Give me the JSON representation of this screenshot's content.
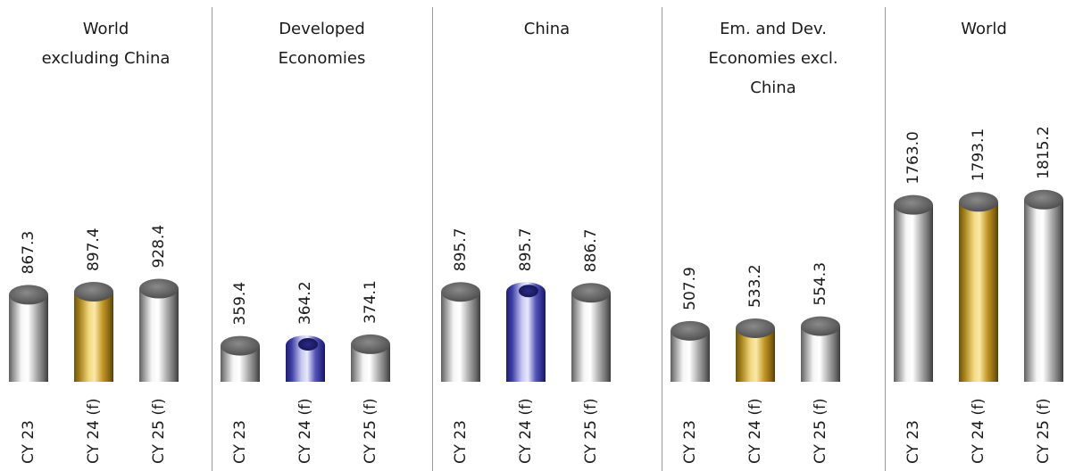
{
  "chart_data": {
    "type": "bar",
    "style": "3d-cylinder",
    "grid": false,
    "legend": "none",
    "ylim": [
      0,
      1900
    ],
    "colors": {
      "default": "#bdbdbd",
      "highlight_gold": "#c9a227",
      "highlight_blue": "#3a3a9c",
      "cap": "#6f6f6f",
      "divider": "#9a9a9a",
      "text": "#1a1a1a"
    },
    "panels": [
      {
        "title": "World excluding China",
        "title_lines": [
          "World",
          "excluding China"
        ],
        "categories": [
          "CY 23",
          "CY 24 (f)",
          "CY 25 (f)"
        ],
        "values": [
          867.3,
          897.4,
          928.4
        ],
        "labels": [
          "867.3",
          "897.4",
          "928.4"
        ],
        "bar_colors": [
          "default",
          "highlight_gold",
          "default"
        ],
        "open_top": [
          false,
          false,
          false
        ]
      },
      {
        "title": "Developed Economies",
        "title_lines": [
          "Developed",
          "Economies"
        ],
        "categories": [
          "CY 23",
          "CY 24 (f)",
          "CY 25 (f)"
        ],
        "values": [
          359.4,
          364.2,
          374.1
        ],
        "labels": [
          "359.4",
          "364.2",
          "374.1"
        ],
        "bar_colors": [
          "default",
          "highlight_blue",
          "default"
        ],
        "open_top": [
          false,
          true,
          false
        ]
      },
      {
        "title": "China",
        "title_lines": [
          "China"
        ],
        "categories": [
          "CY 23",
          "CY 24 (f)",
          "CY 25 (f)"
        ],
        "values": [
          895.7,
          895.7,
          886.7
        ],
        "labels": [
          "895.7",
          "895.7",
          "886.7"
        ],
        "bar_colors": [
          "default",
          "highlight_blue",
          "default"
        ],
        "open_top": [
          false,
          true,
          false
        ]
      },
      {
        "title": "Em. and Dev. Economies excl. China",
        "title_lines": [
          "Em. and Dev.",
          "Economies excl.",
          "China"
        ],
        "categories": [
          "CY 23",
          "CY 24 (f)",
          "CY 25 (f)"
        ],
        "values": [
          507.9,
          533.2,
          554.3
        ],
        "labels": [
          "507.9",
          "533.2",
          "554.3"
        ],
        "bar_colors": [
          "default",
          "highlight_gold",
          "default"
        ],
        "open_top": [
          false,
          false,
          false
        ]
      },
      {
        "title": "World",
        "title_lines": [
          "World"
        ],
        "categories": [
          "CY 23",
          "CY 24 (f)",
          "CY 25 (f)"
        ],
        "values": [
          1763.0,
          1793.1,
          1815.2
        ],
        "labels": [
          "1763.0",
          "1793.1",
          "1815.2"
        ],
        "bar_colors": [
          "default",
          "highlight_gold",
          "default"
        ],
        "open_top": [
          false,
          false,
          false
        ]
      }
    ]
  }
}
